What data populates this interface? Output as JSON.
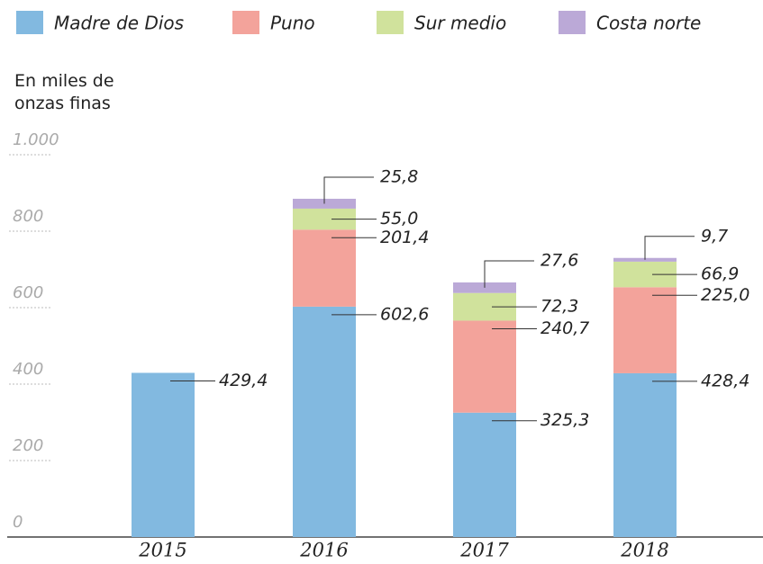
{
  "chart_data": {
    "type": "stacked_bar",
    "y_label": "En miles de onzas finas",
    "categories": [
      "2015",
      "2016",
      "2017",
      "2018"
    ],
    "series": [
      {
        "name": "Madre de Dios",
        "color": "#82b9e0",
        "values": [
          429.4,
          602.6,
          325.3,
          428.4
        ],
        "value_labels": [
          "429,4",
          "602,6",
          "325,3",
          "428,4"
        ]
      },
      {
        "name": "Puno",
        "color": "#f3a39b",
        "values": [
          null,
          201.4,
          240.7,
          225.0
        ],
        "value_labels": [
          null,
          "201,4",
          "240,7",
          "225,0"
        ]
      },
      {
        "name": "Sur medio",
        "color": "#d0e29c",
        "values": [
          null,
          55.0,
          72.3,
          66.9
        ],
        "value_labels": [
          null,
          "55,0",
          "72,3",
          "66,9"
        ]
      },
      {
        "name": "Costa norte",
        "color": "#bba9d7",
        "values": [
          null,
          25.8,
          27.6,
          9.7
        ],
        "value_labels": [
          null,
          "25,8",
          "27,6",
          "9,7"
        ]
      }
    ],
    "ylim": [
      0,
      1000
    ],
    "yticks": [
      0,
      200,
      400,
      600,
      800,
      {
        "value": 1000,
        "label": "1.000"
      }
    ],
    "grid": true
  }
}
